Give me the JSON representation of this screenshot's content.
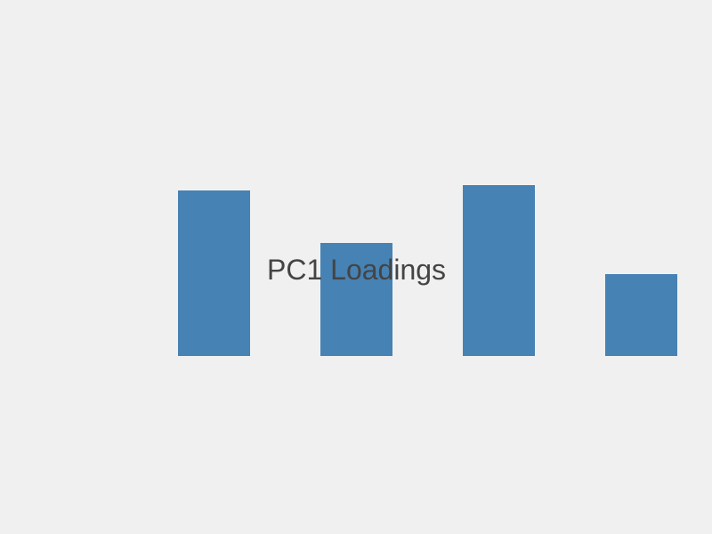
{
  "chart_data": {
    "type": "bar",
    "title": "PC1 Loadings",
    "categories": [
      "",
      "",
      "",
      ""
    ],
    "values": [
      0.93,
      0.635,
      0.96,
      0.46
    ],
    "ylim": [
      0,
      2
    ],
    "grid": false,
    "legend": "none",
    "bar_color": "#4682b4",
    "background_color": "#f0f0f0",
    "title_color": "#444444"
  }
}
